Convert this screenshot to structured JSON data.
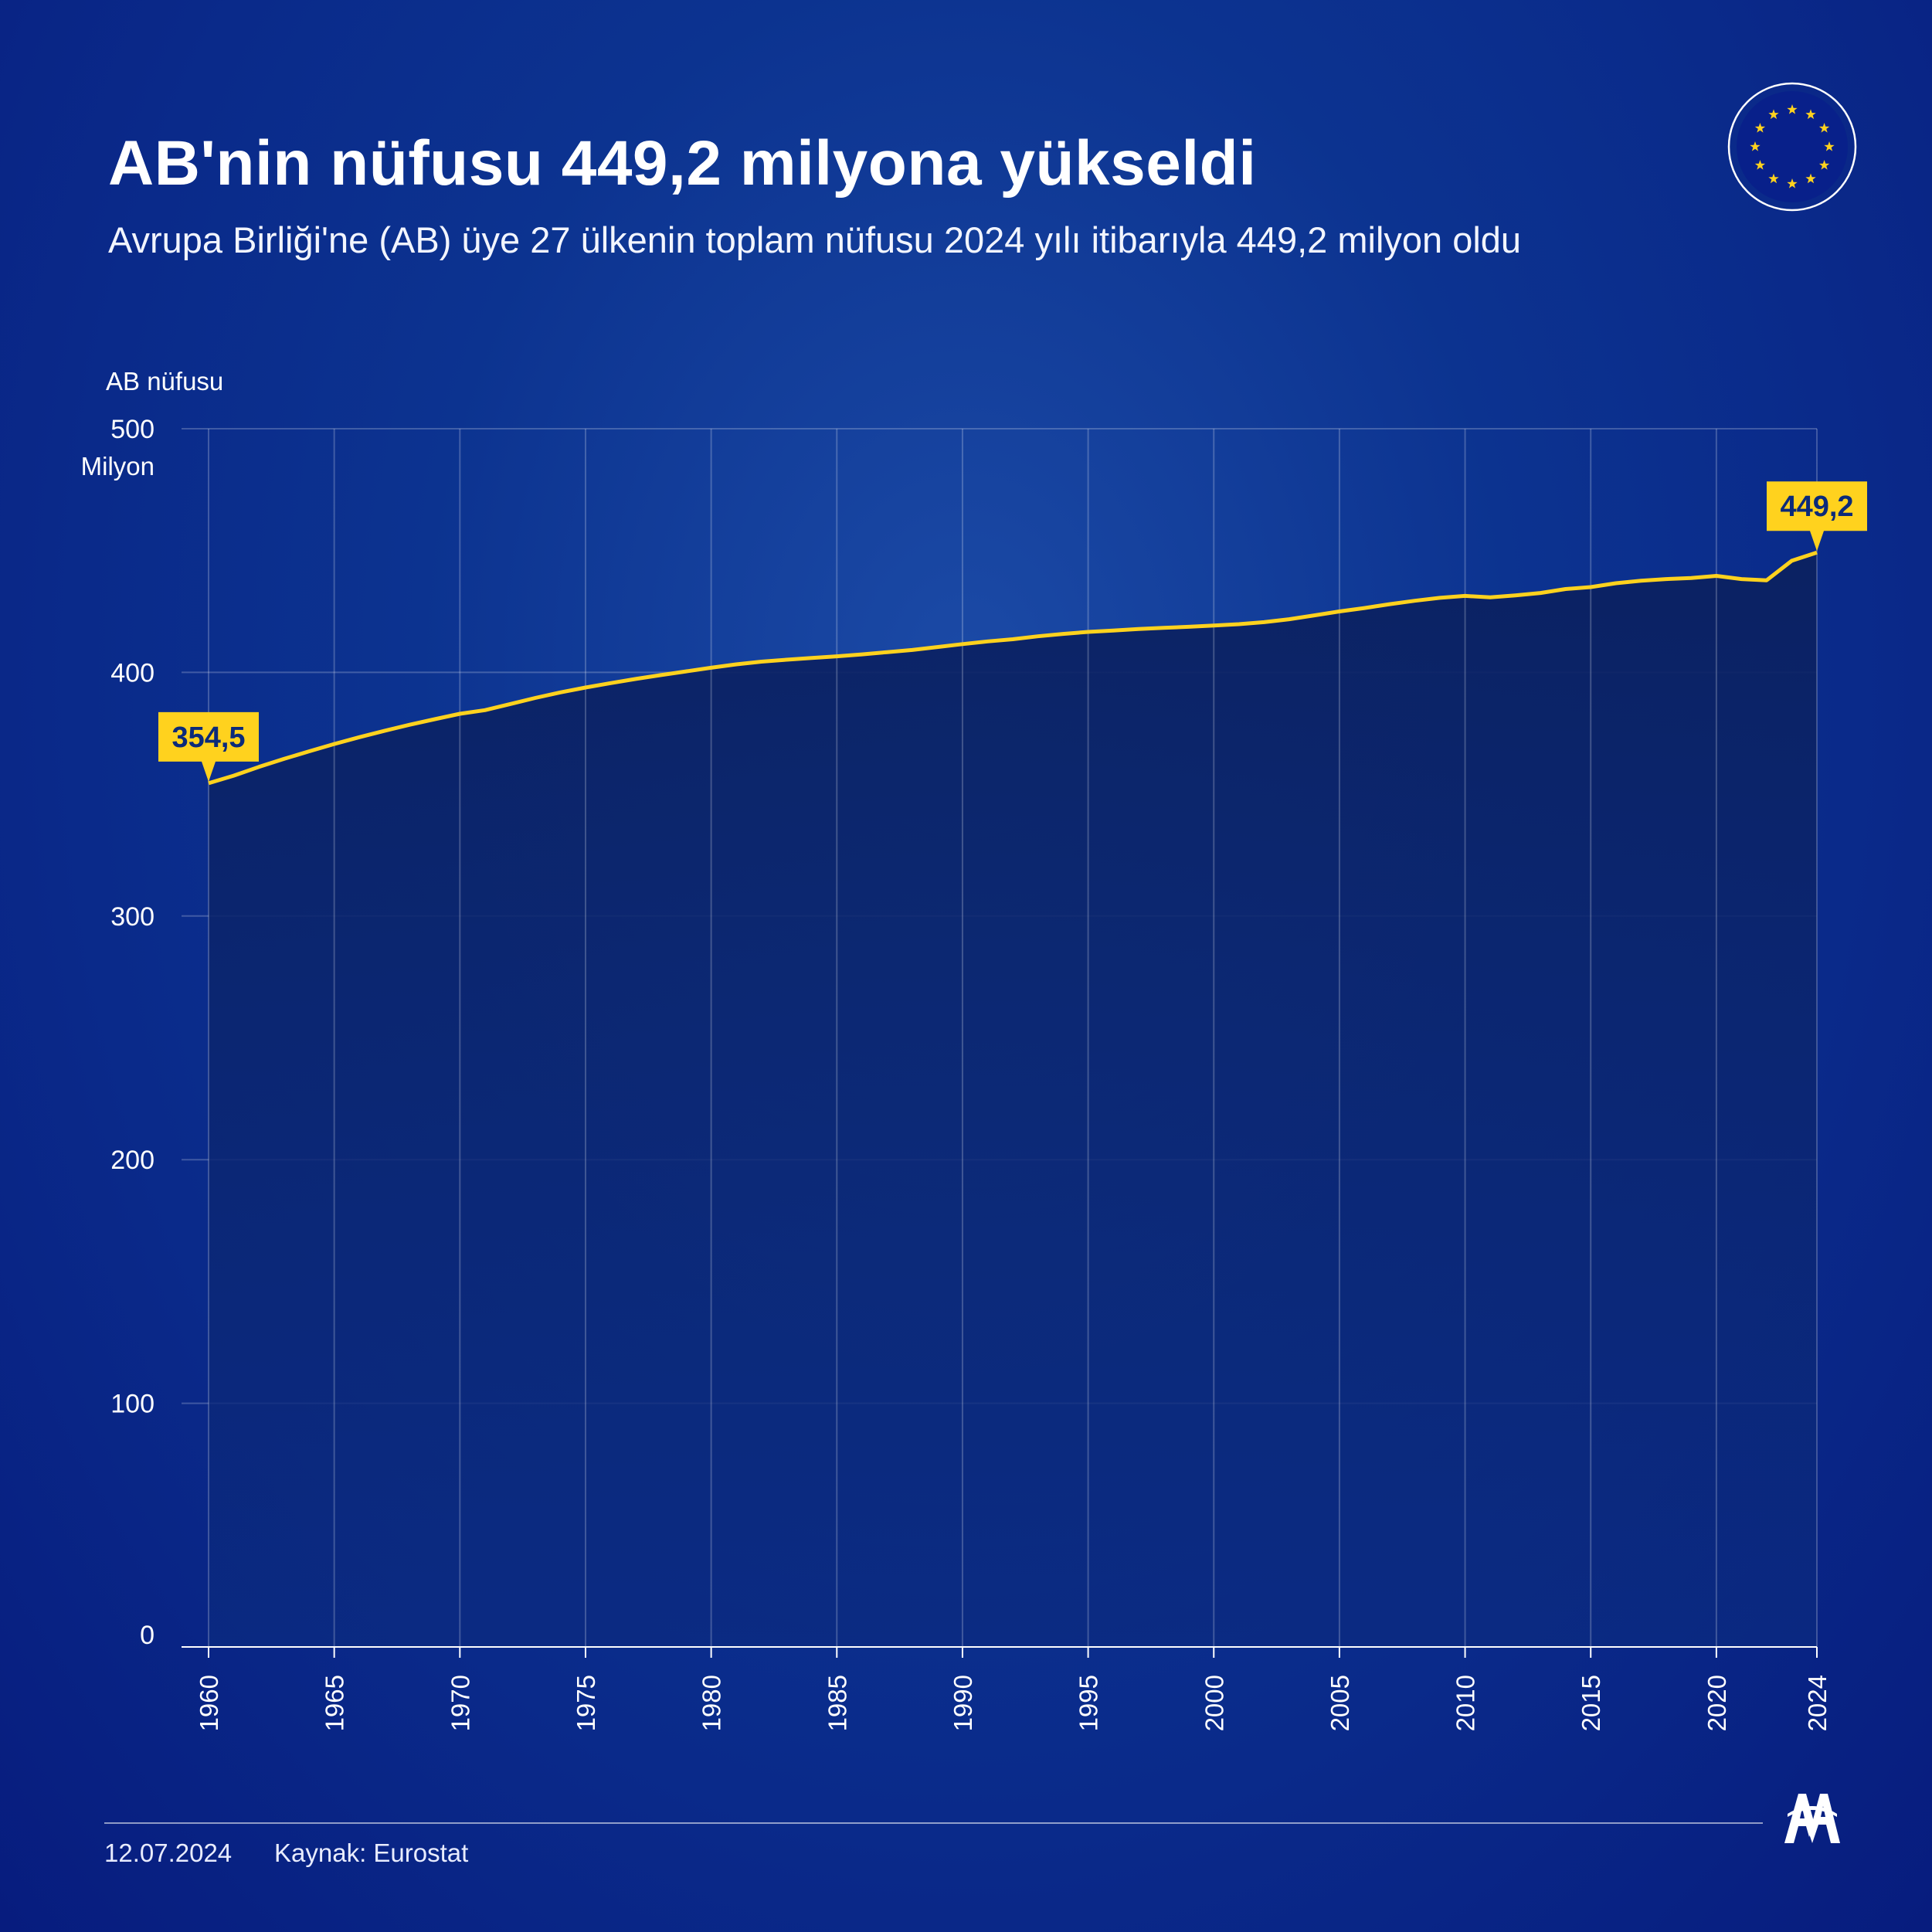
{
  "header": {
    "title": "AB'nin nüfusu 449,2 milyona yükseldi",
    "subtitle": "Avrupa Birliği'ne (AB) üye 27 ülkenin toplam nüfusu 2024 yılı itibarıyla 449,2 milyon oldu"
  },
  "footer": {
    "date": "12.07.2024",
    "source": "Kaynak: Eurostat"
  },
  "icons": {
    "flag": "eu-flag-icon",
    "logo": "aa-logo-icon"
  },
  "colors": {
    "line": "#ffd21e",
    "label_bg": "#ffd21e",
    "label_text": "#0b2a7a",
    "area_fill": "#0c2568"
  },
  "chart_data": {
    "type": "area",
    "title": "",
    "ylabel": "AB nüfusu",
    "yunit": "Milyon",
    "xlabel": "",
    "xlim": [
      1960,
      2024
    ],
    "ylim": [
      0,
      500
    ],
    "yticks": [
      0,
      100,
      200,
      300,
      400,
      500
    ],
    "xticks": [
      1960,
      1965,
      1970,
      1975,
      1980,
      1985,
      1990,
      1995,
      2000,
      2005,
      2010,
      2015,
      2020,
      2024
    ],
    "grid": true,
    "series": [
      {
        "x": [
          1960,
          1961,
          1962,
          1963,
          1964,
          1965,
          1966,
          1967,
          1968,
          1969,
          1970,
          1971,
          1972,
          1973,
          1974,
          1975,
          1976,
          1977,
          1978,
          1979,
          1980,
          1981,
          1982,
          1983,
          1984,
          1985,
          1986,
          1987,
          1988,
          1989,
          1990,
          1991,
          1992,
          1993,
          1994,
          1995,
          1996,
          1997,
          1998,
          1999,
          2000,
          2001,
          2002,
          2003,
          2004,
          2005,
          2006,
          2007,
          2008,
          2009,
          2010,
          2011,
          2012,
          2013,
          2014,
          2015,
          2016,
          2017,
          2018,
          2019,
          2020,
          2021,
          2022,
          2023,
          2024
        ],
        "values": [
          354.5,
          357.6,
          361.2,
          364.5,
          367.6,
          370.6,
          373.4,
          376.0,
          378.5,
          380.8,
          383.0,
          384.5,
          387.0,
          389.5,
          391.8,
          393.8,
          395.6,
          397.3,
          398.9,
          400.4,
          401.9,
          403.3,
          404.4,
          405.2,
          405.9,
          406.6,
          407.4,
          408.3,
          409.2,
          410.4,
          411.6,
          412.7,
          413.6,
          414.8,
          415.8,
          416.6,
          417.2,
          417.8,
          418.3,
          418.7,
          419.2,
          419.8,
          420.6,
          421.8,
          423.4,
          425.0,
          426.4,
          428.0,
          429.4,
          430.6,
          431.4,
          430.8,
          431.6,
          432.6,
          434.2,
          435.0,
          436.6,
          437.6,
          438.3,
          438.7,
          439.6,
          438.3,
          437.8,
          445.8,
          449.2
        ]
      }
    ],
    "annotations": [
      {
        "x": 1960,
        "y": 354.5,
        "label": "354,5"
      },
      {
        "x": 2024,
        "y": 449.2,
        "label": "449,2"
      }
    ]
  }
}
